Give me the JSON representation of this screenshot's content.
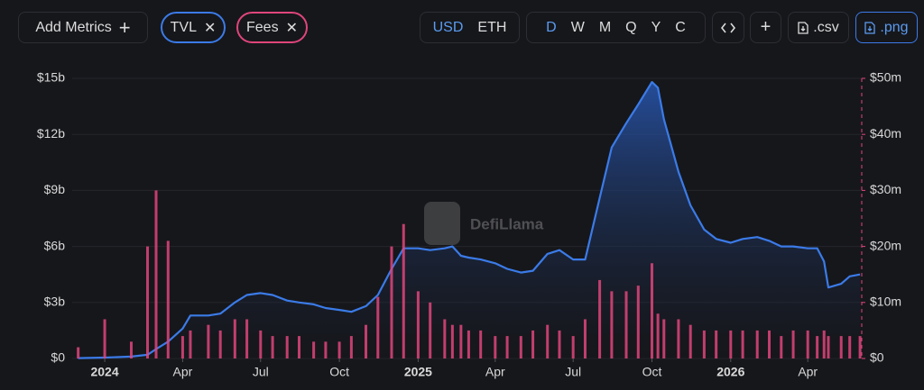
{
  "toolbar": {
    "add_metrics": "Add Metrics",
    "currencies": [
      "USD",
      "ETH"
    ],
    "periods": [
      "D",
      "W",
      "M",
      "Q",
      "Y",
      "C"
    ],
    "csv": ".csv",
    "png": ".png"
  },
  "watermark": "DefiLlama",
  "chart_data": {
    "type": "combo",
    "x": [
      "2023-12-01",
      "2024-01-01",
      "2024-02-01",
      "2024-02-20",
      "2024-03-01",
      "2024-03-15",
      "2024-04-01",
      "2024-04-10",
      "2024-05-01",
      "2024-05-15",
      "2024-06-01",
      "2024-06-15",
      "2024-07-01",
      "2024-07-15",
      "2024-08-01",
      "2024-08-15",
      "2024-09-01",
      "2024-09-15",
      "2024-10-01",
      "2024-10-15",
      "2024-11-01",
      "2024-11-15",
      "2024-12-01",
      "2024-12-15",
      "2025-01-01",
      "2025-01-15",
      "2025-02-01",
      "2025-02-10",
      "2025-02-20",
      "2025-03-01",
      "2025-03-15",
      "2025-04-01",
      "2025-04-15",
      "2025-05-01",
      "2025-05-15",
      "2025-06-01",
      "2025-06-15",
      "2025-07-01",
      "2025-07-15",
      "2025-08-01",
      "2025-08-15",
      "2025-09-01",
      "2025-09-15",
      "2025-10-01",
      "2025-10-08",
      "2025-10-15",
      "2025-11-01",
      "2025-11-15",
      "2025-12-01",
      "2025-12-15",
      "2026-01-01",
      "2026-01-15",
      "2026-02-01",
      "2026-02-15",
      "2026-03-01",
      "2026-03-15",
      "2026-04-01",
      "2026-04-12",
      "2026-04-20",
      "2026-04-25",
      "2026-05-10",
      "2026-05-20",
      "2026-06-01"
    ],
    "series": [
      {
        "name": "TVL",
        "type": "area",
        "color": "#3b7be8",
        "values": [
          0.02,
          0.05,
          0.1,
          0.2,
          0.5,
          0.9,
          1.6,
          2.3,
          2.3,
          2.4,
          3.0,
          3.4,
          3.5,
          3.4,
          3.1,
          3.0,
          2.9,
          2.7,
          2.6,
          2.5,
          2.8,
          3.4,
          4.8,
          5.9,
          5.9,
          5.8,
          5.9,
          6.0,
          5.5,
          5.4,
          5.3,
          5.1,
          4.8,
          4.6,
          4.7,
          5.6,
          5.8,
          5.3,
          5.3,
          8.6,
          11.3,
          12.6,
          13.6,
          14.8,
          14.5,
          12.8,
          10.0,
          8.2,
          6.9,
          6.4,
          6.2,
          6.4,
          6.5,
          6.3,
          6.0,
          6.0,
          5.9,
          5.9,
          5.2,
          3.8,
          4.0,
          4.4,
          4.5
        ]
      },
      {
        "name": "Fees",
        "type": "bar",
        "axis": "y2",
        "color": "#e0457b",
        "values": [
          2,
          7,
          3,
          20,
          30,
          21,
          4,
          5,
          6,
          5,
          7,
          7,
          5,
          4,
          4,
          4,
          3,
          3,
          3,
          4,
          6,
          11,
          20,
          24,
          12,
          10,
          7,
          6,
          6,
          5,
          5,
          4,
          4,
          4,
          5,
          6,
          5,
          4,
          7,
          14,
          12,
          12,
          13,
          17,
          8,
          7,
          7,
          6,
          5,
          5,
          5,
          5,
          5,
          5,
          4,
          5,
          5,
          4,
          5,
          4,
          4,
          4,
          4
        ]
      }
    ],
    "xlim": [
      "2023-11-24",
      "2026-06-03"
    ],
    "xticks": [
      {
        "value": "2024-01-01",
        "label": "2024"
      },
      {
        "value": "2024-04-01",
        "label": "Apr"
      },
      {
        "value": "2024-07-01",
        "label": "Jul"
      },
      {
        "value": "2024-10-01",
        "label": "Oct"
      },
      {
        "value": "2025-01-01",
        "label": "2025"
      },
      {
        "value": "2025-04-01",
        "label": "Apr"
      },
      {
        "value": "2025-07-01",
        "label": "Jul"
      },
      {
        "value": "2025-10-01",
        "label": "Oct"
      },
      {
        "value": "2026-01-01",
        "label": "2026"
      },
      {
        "value": "2026-04-01",
        "label": "Apr"
      }
    ],
    "ylim": [
      0,
      15
    ],
    "yticks": [
      {
        "value": 0,
        "label": "$0"
      },
      {
        "value": 3,
        "label": "$3b"
      },
      {
        "value": 6,
        "label": "$6b"
      },
      {
        "value": 9,
        "label": "$9b"
      },
      {
        "value": 12,
        "label": "$12b"
      },
      {
        "value": 15,
        "label": "$15b"
      }
    ],
    "y2lim": [
      0,
      50
    ],
    "y2ticks": [
      {
        "value": 0,
        "label": "$0"
      },
      {
        "value": 10,
        "label": "$10m"
      },
      {
        "value": 20,
        "label": "$20m"
      },
      {
        "value": 30,
        "label": "$30m"
      },
      {
        "value": 40,
        "label": "$40m"
      },
      {
        "value": 50,
        "label": "$50m"
      }
    ],
    "grid": true
  }
}
